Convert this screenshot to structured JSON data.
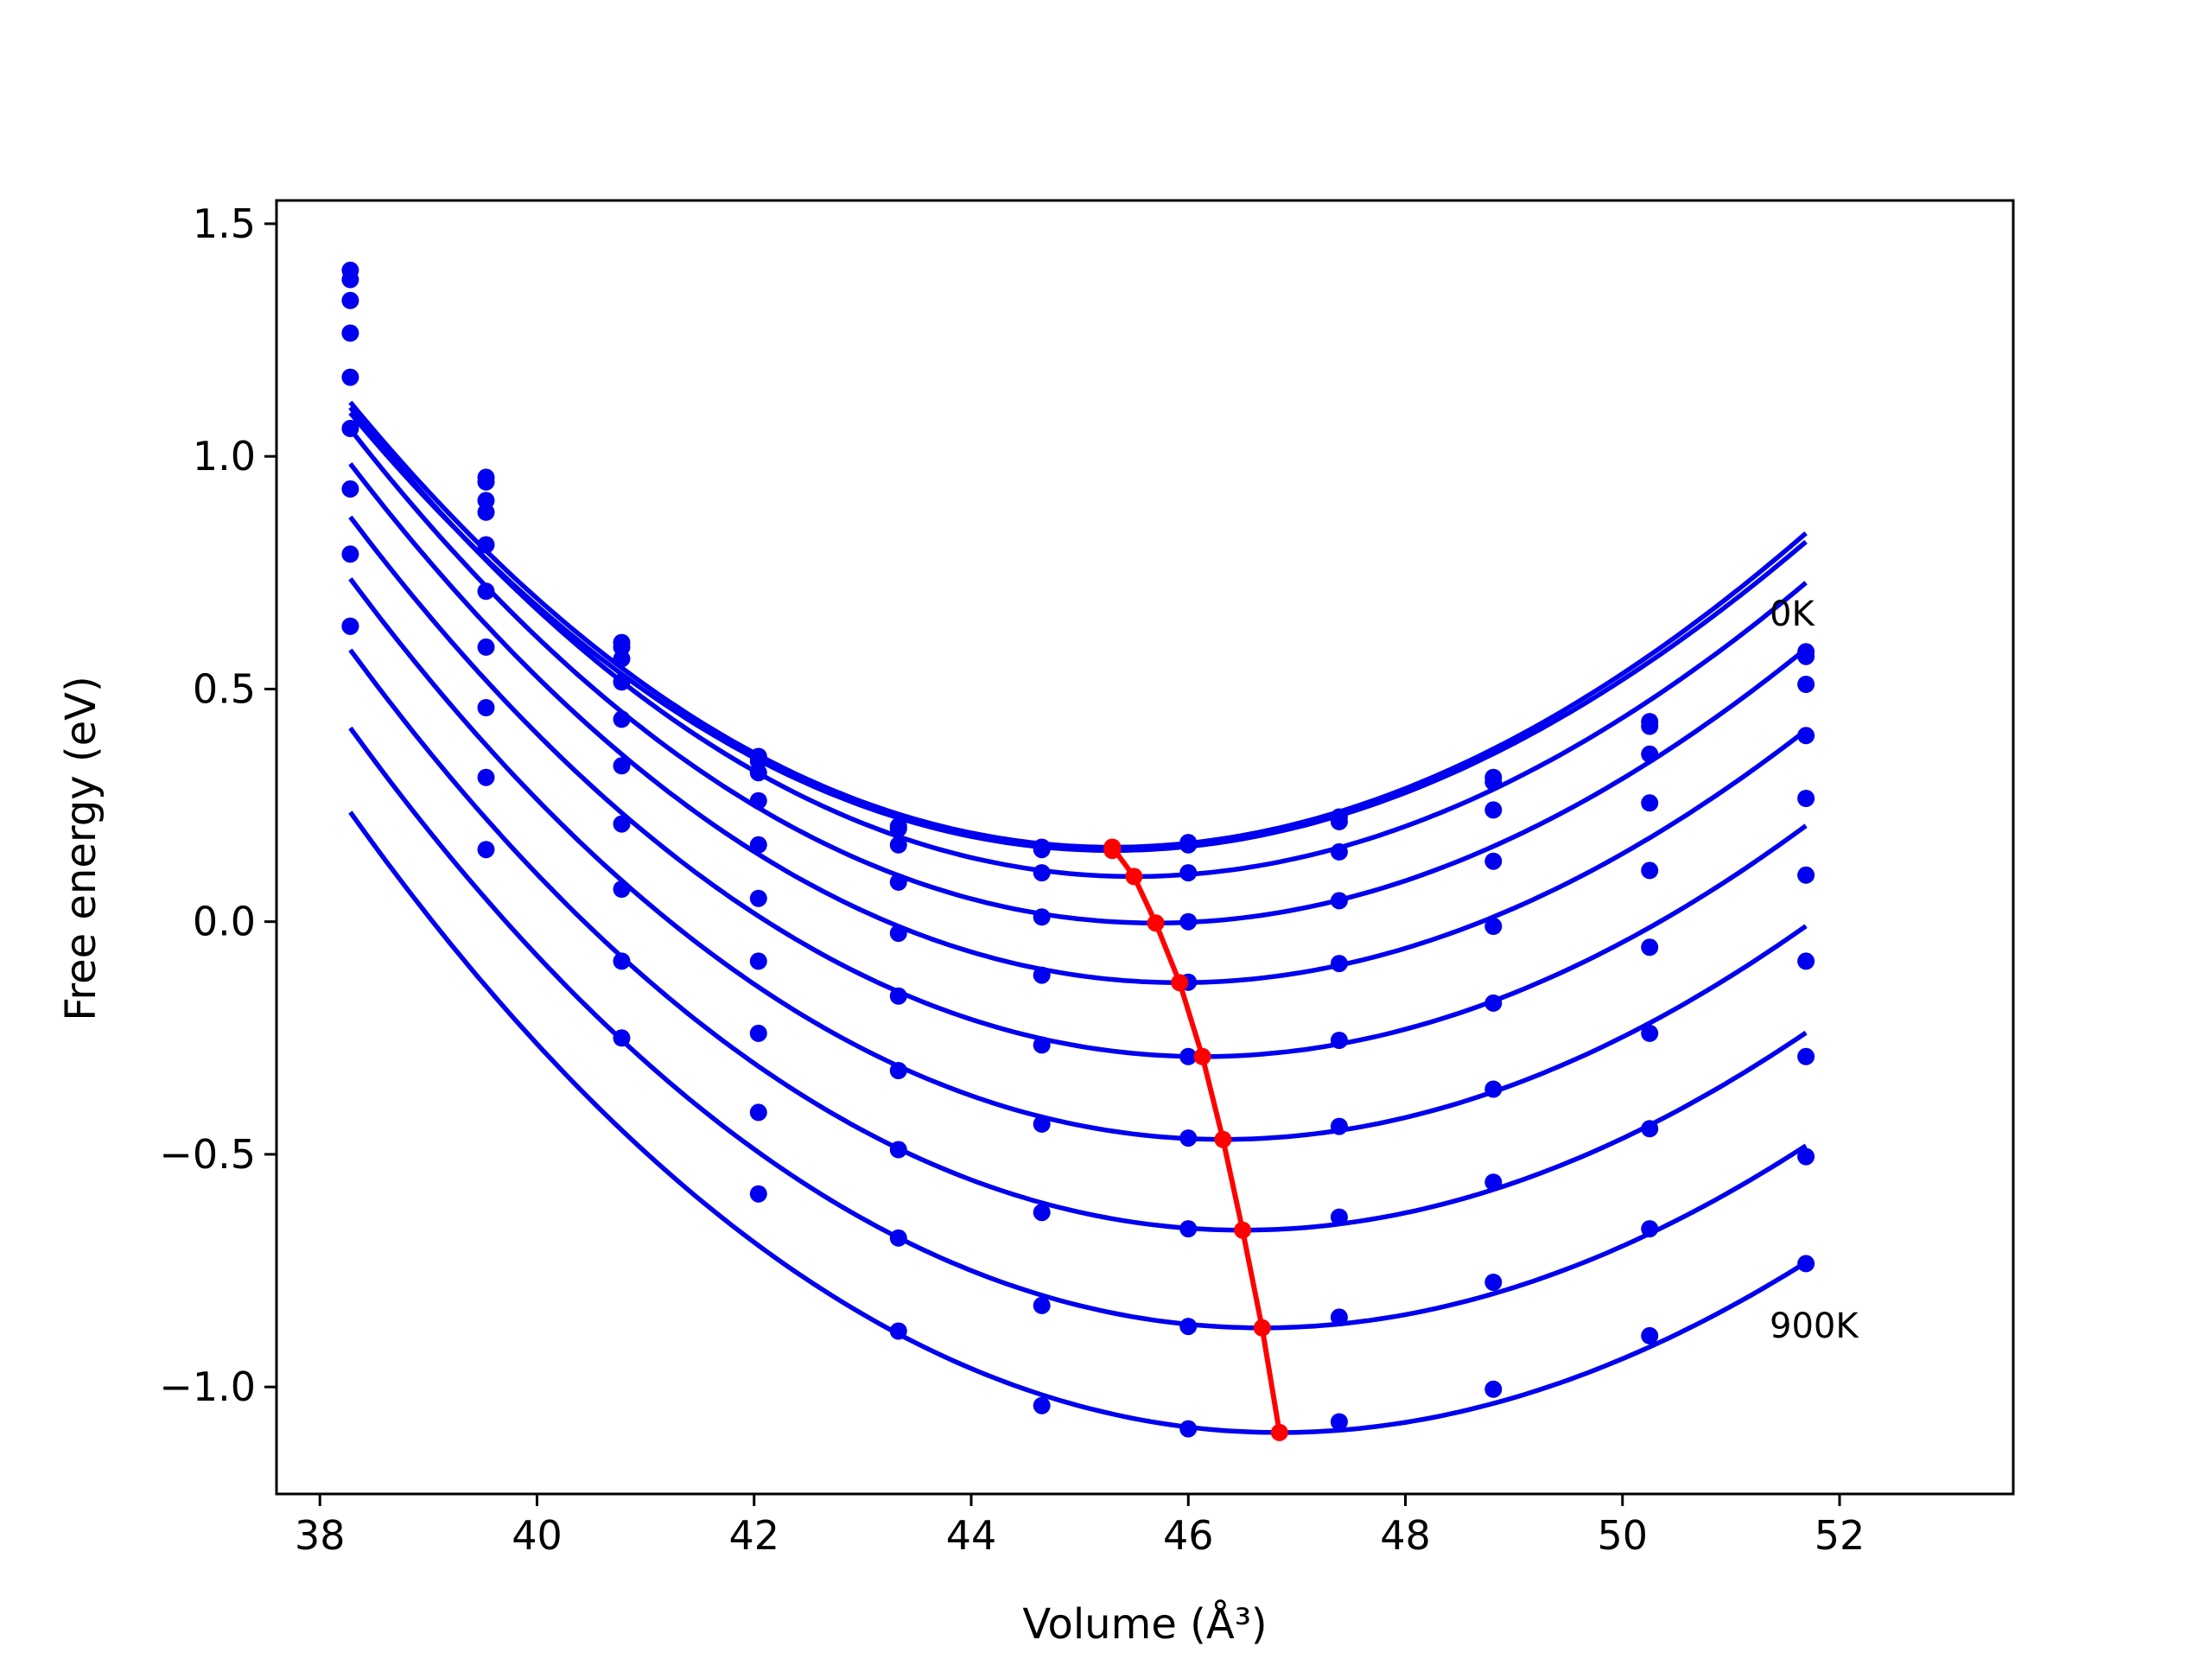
{
  "chart_data": {
    "type": "line",
    "xlabel": "Volume (Å³)",
    "ylabel": "Free energy (eV)",
    "xlim": [
      37.6,
      53.6
    ],
    "ylim": [
      -1.23,
      1.55
    ],
    "xticks": [
      38,
      40,
      42,
      44,
      46,
      48,
      50,
      52
    ],
    "yticks": [
      -1.0,
      -0.5,
      0.0,
      0.5,
      1.0,
      1.5
    ],
    "xtick_labels": [
      "38",
      "40",
      "42",
      "44",
      "46",
      "48",
      "50",
      "52"
    ],
    "ytick_labels": [
      "−1.0",
      "−0.5",
      "0.0",
      "0.5",
      "1.0",
      "1.5"
    ],
    "grid": false,
    "colors": {
      "fit": "#0000ee",
      "points": "#0000ee",
      "minima": "#ff0000"
    },
    "annotations": [
      {
        "text": "0K",
        "x": 50.25,
        "y": 0.6
      },
      {
        "text": "900K",
        "x": 50.25,
        "y": -0.92
      }
    ],
    "volumes": [
      38.28,
      39.53,
      40.78,
      42.04,
      43.33,
      44.65,
      46.0,
      47.39,
      48.81,
      50.25,
      51.69
    ],
    "series": [
      {
        "curve": {
          "a": 0.0176,
          "v0": 45.3,
          "e0": 0.153
        },
        "points": [
          1.4,
          0.955,
          0.6,
          0.355,
          0.205,
          0.16,
          0.17,
          0.225,
          0.31,
          0.43,
          0.58
        ]
      },
      {
        "curve": {
          "a": 0.0179,
          "v0": 45.3,
          "e0": 0.16
        },
        "points": [
          1.38,
          0.945,
          0.59,
          0.345,
          0.2,
          0.155,
          0.165,
          0.215,
          0.3,
          0.42,
          0.57
        ]
      },
      {
        "curve": {
          "a": 0.0178,
          "v0": 45.5,
          "e0": 0.097
        },
        "points": [
          1.335,
          0.905,
          0.565,
          0.32,
          0.165,
          0.105,
          0.105,
          0.15,
          0.24,
          0.36,
          0.51
        ]
      },
      {
        "curve": {
          "a": 0.0177,
          "v0": 45.7,
          "e0": -0.003
        },
        "points": [
          1.265,
          0.88,
          0.515,
          0.26,
          0.085,
          0.01,
          0.0,
          0.045,
          0.13,
          0.255,
          0.4
        ]
      },
      {
        "curve": {
          "a": 0.0175,
          "v0": 45.92,
          "e0": -0.131
        },
        "points": [
          1.17,
          0.81,
          0.435,
          0.165,
          -0.025,
          -0.115,
          -0.13,
          -0.09,
          -0.01,
          0.11,
          0.265
        ]
      },
      {
        "curve": {
          "a": 0.0172,
          "v0": 46.13,
          "e0": -0.29
        },
        "points": [
          1.06,
          0.71,
          0.335,
          0.05,
          -0.16,
          -0.265,
          -0.29,
          -0.255,
          -0.175,
          -0.055,
          0.1
        ]
      },
      {
        "curve": {
          "a": 0.017,
          "v0": 46.32,
          "e0": -0.468
        },
        "points": [
          0.93,
          0.59,
          0.21,
          -0.085,
          -0.32,
          -0.435,
          -0.465,
          -0.44,
          -0.36,
          -0.24,
          -0.085
        ]
      },
      {
        "curve": {
          "a": 0.0168,
          "v0": 46.5,
          "e0": -0.663
        },
        "points": [
          0.79,
          0.46,
          0.07,
          -0.24,
          -0.49,
          -0.625,
          -0.66,
          -0.635,
          -0.56,
          -0.445,
          -0.29
        ]
      },
      {
        "curve": {
          "a": 0.0166,
          "v0": 46.68,
          "e0": -0.873
        },
        "points": [
          0.635,
          0.31,
          -0.085,
          -0.41,
          -0.68,
          -0.825,
          -0.87,
          -0.85,
          -0.775,
          -0.66,
          -0.505
        ]
      },
      {
        "curve": {
          "a": 0.0165,
          "v0": 46.84,
          "e0": -1.098
        },
        "points": [
          0.635,
          0.155,
          -0.25,
          -0.585,
          -0.88,
          -1.04,
          -1.09,
          -1.075,
          -1.005,
          -0.89,
          -0.735
        ]
      }
    ],
    "minima": {
      "x": [
        45.3,
        45.3,
        45.5,
        45.7,
        45.92,
        46.13,
        46.32,
        46.5,
        46.68,
        46.84
      ],
      "y": [
        0.153,
        0.16,
        0.097,
        -0.003,
        -0.131,
        -0.29,
        -0.468,
        -0.663,
        -0.873,
        -1.098
      ]
    }
  }
}
